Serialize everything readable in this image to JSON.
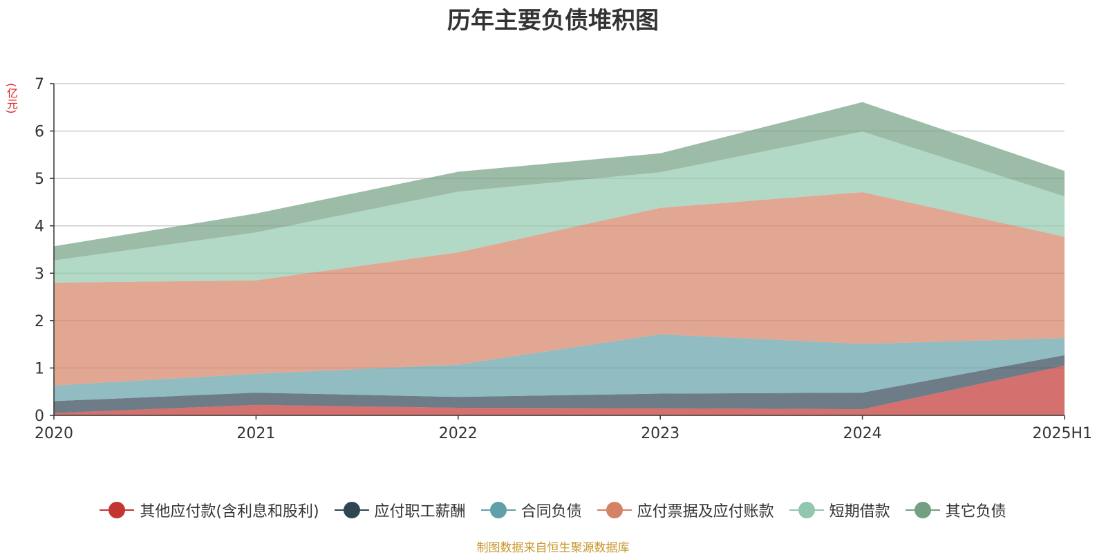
{
  "chart_data": {
    "type": "area",
    "stacked": true,
    "title": "历年主要负债堆积图",
    "unit": "(亿元)",
    "categories": [
      "2020",
      "2021",
      "2022",
      "2023",
      "2024",
      "2025H1"
    ],
    "ylim": [
      0,
      7
    ],
    "yticks": [
      0,
      1,
      2,
      3,
      4,
      5,
      6,
      7
    ],
    "grid": true,
    "legend_position": "bottom",
    "series": [
      {
        "name": "其他应付款(含利息和股利)",
        "color": "#c23531",
        "values": [
          0.05,
          0.22,
          0.16,
          0.15,
          0.13,
          1.05
        ]
      },
      {
        "name": "应付职工薪酬",
        "color": "#2f4554",
        "values": [
          0.25,
          0.26,
          0.23,
          0.31,
          0.35,
          0.22
        ]
      },
      {
        "name": "合同负债",
        "color": "#61a0a8",
        "values": [
          0.33,
          0.4,
          0.68,
          1.25,
          1.03,
          0.36
        ]
      },
      {
        "name": "应付票据及应付账款",
        "color": "#d48265",
        "values": [
          2.17,
          1.97,
          2.37,
          2.67,
          3.2,
          2.14
        ]
      },
      {
        "name": "短期借款",
        "color": "#91c7ae",
        "values": [
          0.47,
          1.01,
          1.28,
          0.75,
          1.28,
          0.85
        ]
      },
      {
        "name": "其它负债",
        "color": "#749f83",
        "values": [
          0.3,
          0.4,
          0.42,
          0.4,
          0.62,
          0.54
        ]
      }
    ]
  },
  "source_note": "制图数据来自恒生聚源数据库"
}
